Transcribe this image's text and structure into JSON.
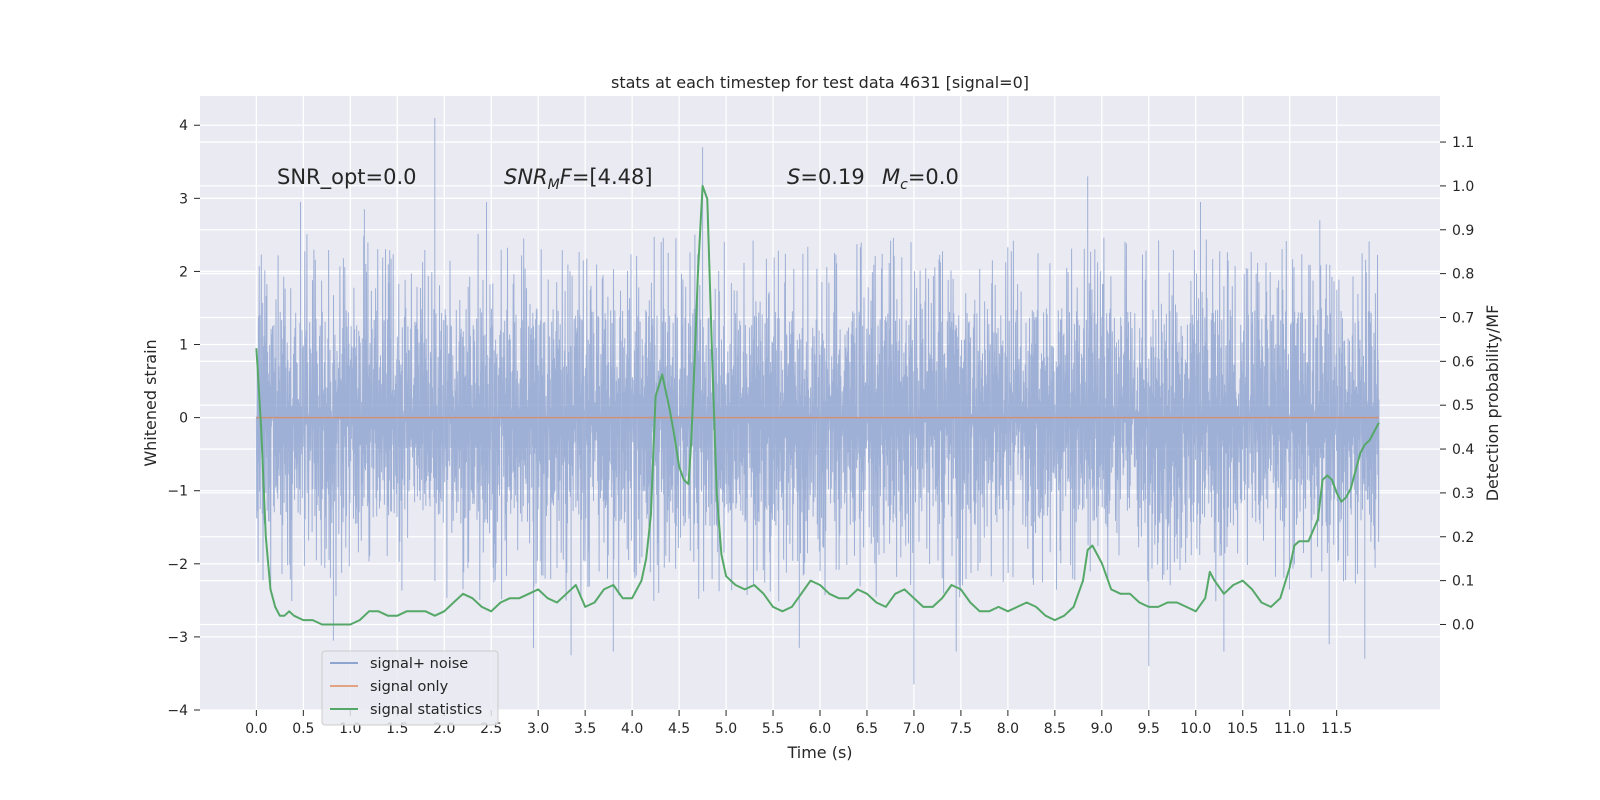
{
  "chart_data": {
    "type": "line",
    "title": "stats at each timestep for test data 4631 [signal=0]",
    "xlabel": "Time (s)",
    "ylabel": "Whitened strain",
    "ylabel_right": "Detection probability/MF",
    "xlim": [
      -0.6,
      12.6
    ],
    "ylim": [
      -4.0,
      4.4
    ],
    "ylim_right": [
      -0.195,
      1.205
    ],
    "x_ticks": [
      0.0,
      0.5,
      1.0,
      1.5,
      2.0,
      2.5,
      3.0,
      3.5,
      4.0,
      4.5,
      5.0,
      5.5,
      6.0,
      6.5,
      7.0,
      7.5,
      8.0,
      8.5,
      9.0,
      9.5,
      10.0,
      10.5,
      11.0,
      11.5
    ],
    "x_tick_labels": [
      "0.0",
      "0.5",
      "1.0",
      "1.5",
      "2.0",
      "2.5",
      "3.0",
      "3.5",
      "4.0",
      "4.5",
      "5.0",
      "5.5",
      "6.0",
      "6.5",
      "7.0",
      "7.5",
      "8.0",
      "8.5",
      "9.0",
      "9.5",
      "10.0",
      "10.5",
      "11.0",
      "11.5"
    ],
    "y_ticks": [
      -4,
      -3,
      -2,
      -1,
      0,
      1,
      2,
      3,
      4
    ],
    "y_tick_labels": [
      "−4",
      "−3",
      "−2",
      "−1",
      "0",
      "1",
      "2",
      "3",
      "4"
    ],
    "y_ticks_right": [
      0.0,
      0.1,
      0.2,
      0.3,
      0.4,
      0.5,
      0.6,
      0.7,
      0.8,
      0.9,
      1.0,
      1.1
    ],
    "y_tick_labels_right": [
      "0.0",
      "0.1",
      "0.2",
      "0.3",
      "0.4",
      "0.5",
      "0.6",
      "0.7",
      "0.8",
      "0.9",
      "1.0",
      "1.1"
    ],
    "grid": true,
    "legend_position": "lower-left",
    "annotations": {
      "snr_opt": "SNR_opt=0.0",
      "snr_mf_main": "SNR",
      "snr_mf_sub": "M",
      "snr_mf_rest": "F=[4.48]",
      "s_main": "S",
      "s_rest": "=0.19",
      "mc_main": "M",
      "mc_sub": "c",
      "mc_rest": "=0.0"
    },
    "series": [
      {
        "name": "signal+ noise",
        "axis": "left",
        "color": "#8fa4cf",
        "x_range": [
          0.0,
          11.95
        ],
        "envelope": {
          "core_band": [
            -1.5,
            1.5
          ],
          "typical_peak": [
            -2.4,
            2.2
          ],
          "max": 4.1,
          "min": -3.65
        },
        "notable_peaks": [
          {
            "x": 1.9,
            "y": 4.1
          },
          {
            "x": 4.75,
            "y": 3.7
          },
          {
            "x": 8.85,
            "y": 3.3
          },
          {
            "x": 0.47,
            "y": 2.95
          },
          {
            "x": 2.45,
            "y": 2.95
          },
          {
            "x": 10.05,
            "y": 2.95
          },
          {
            "x": 1.15,
            "y": 2.85
          },
          {
            "x": 11.32,
            "y": 2.7
          },
          {
            "x": 7.0,
            "y": -3.65
          },
          {
            "x": 9.5,
            "y": -3.4
          },
          {
            "x": 11.8,
            "y": -3.3
          },
          {
            "x": 3.35,
            "y": -3.25
          },
          {
            "x": 11.42,
            "y": -3.1
          },
          {
            "x": 0.82,
            "y": -3.05
          },
          {
            "x": 2.95,
            "y": -3.15
          },
          {
            "x": 3.8,
            "y": -3.2
          },
          {
            "x": 7.45,
            "y": -3.2
          },
          {
            "x": 10.3,
            "y": -3.2
          },
          {
            "x": 5.78,
            "y": -3.15
          }
        ]
      },
      {
        "name": "signal only",
        "axis": "left",
        "color": "#dd8452",
        "x": [
          0.0,
          11.95
        ],
        "y": [
          0.0,
          0.0
        ]
      },
      {
        "name": "signal statistics",
        "axis": "right",
        "color": "#55a868",
        "x": [
          0.0,
          0.05,
          0.1,
          0.15,
          0.2,
          0.25,
          0.3,
          0.35,
          0.4,
          0.5,
          0.6,
          0.7,
          0.8,
          0.9,
          1.0,
          1.1,
          1.2,
          1.3,
          1.4,
          1.5,
          1.6,
          1.7,
          1.8,
          1.9,
          2.0,
          2.1,
          2.2,
          2.3,
          2.4,
          2.5,
          2.6,
          2.7,
          2.8,
          2.9,
          3.0,
          3.1,
          3.2,
          3.3,
          3.4,
          3.5,
          3.6,
          3.7,
          3.8,
          3.9,
          4.0,
          4.1,
          4.15,
          4.2,
          4.25,
          4.32,
          4.4,
          4.45,
          4.5,
          4.55,
          4.6,
          4.63,
          4.67,
          4.7,
          4.75,
          4.8,
          4.85,
          4.9,
          4.95,
          5.0,
          5.1,
          5.2,
          5.3,
          5.4,
          5.5,
          5.6,
          5.7,
          5.8,
          5.9,
          6.0,
          6.1,
          6.2,
          6.3,
          6.4,
          6.5,
          6.6,
          6.7,
          6.8,
          6.9,
          7.0,
          7.1,
          7.2,
          7.3,
          7.4,
          7.5,
          7.6,
          7.7,
          7.8,
          7.9,
          8.0,
          8.1,
          8.2,
          8.3,
          8.4,
          8.5,
          8.6,
          8.7,
          8.8,
          8.85,
          8.9,
          9.0,
          9.1,
          9.2,
          9.3,
          9.4,
          9.5,
          9.6,
          9.7,
          9.8,
          9.9,
          10.0,
          10.1,
          10.15,
          10.2,
          10.3,
          10.4,
          10.5,
          10.6,
          10.7,
          10.8,
          10.9,
          11.0,
          11.05,
          11.1,
          11.15,
          11.2,
          11.3,
          11.35,
          11.4,
          11.45,
          11.5,
          11.55,
          11.6,
          11.65,
          11.7,
          11.75,
          11.8,
          11.85,
          11.9,
          11.95
        ],
        "y": [
          0.63,
          0.45,
          0.2,
          0.08,
          0.04,
          0.02,
          0.02,
          0.03,
          0.02,
          0.01,
          0.01,
          0.0,
          0.0,
          0.0,
          0.0,
          0.01,
          0.03,
          0.03,
          0.02,
          0.02,
          0.03,
          0.03,
          0.03,
          0.02,
          0.03,
          0.05,
          0.07,
          0.06,
          0.04,
          0.03,
          0.05,
          0.06,
          0.06,
          0.07,
          0.08,
          0.06,
          0.05,
          0.07,
          0.09,
          0.04,
          0.05,
          0.08,
          0.09,
          0.06,
          0.06,
          0.1,
          0.15,
          0.25,
          0.52,
          0.57,
          0.49,
          0.43,
          0.36,
          0.33,
          0.32,
          0.42,
          0.63,
          0.8,
          1.0,
          0.97,
          0.62,
          0.3,
          0.16,
          0.11,
          0.09,
          0.08,
          0.09,
          0.07,
          0.04,
          0.03,
          0.04,
          0.07,
          0.1,
          0.09,
          0.07,
          0.06,
          0.06,
          0.08,
          0.07,
          0.05,
          0.04,
          0.07,
          0.08,
          0.06,
          0.04,
          0.04,
          0.06,
          0.09,
          0.08,
          0.05,
          0.03,
          0.03,
          0.04,
          0.03,
          0.04,
          0.05,
          0.04,
          0.02,
          0.01,
          0.02,
          0.04,
          0.1,
          0.17,
          0.18,
          0.14,
          0.08,
          0.07,
          0.07,
          0.05,
          0.04,
          0.04,
          0.05,
          0.05,
          0.04,
          0.03,
          0.06,
          0.12,
          0.1,
          0.07,
          0.09,
          0.1,
          0.08,
          0.05,
          0.04,
          0.06,
          0.13,
          0.18,
          0.19,
          0.19,
          0.19,
          0.24,
          0.33,
          0.34,
          0.33,
          0.3,
          0.28,
          0.29,
          0.31,
          0.35,
          0.39,
          0.41,
          0.42,
          0.44,
          0.46
        ]
      }
    ]
  }
}
